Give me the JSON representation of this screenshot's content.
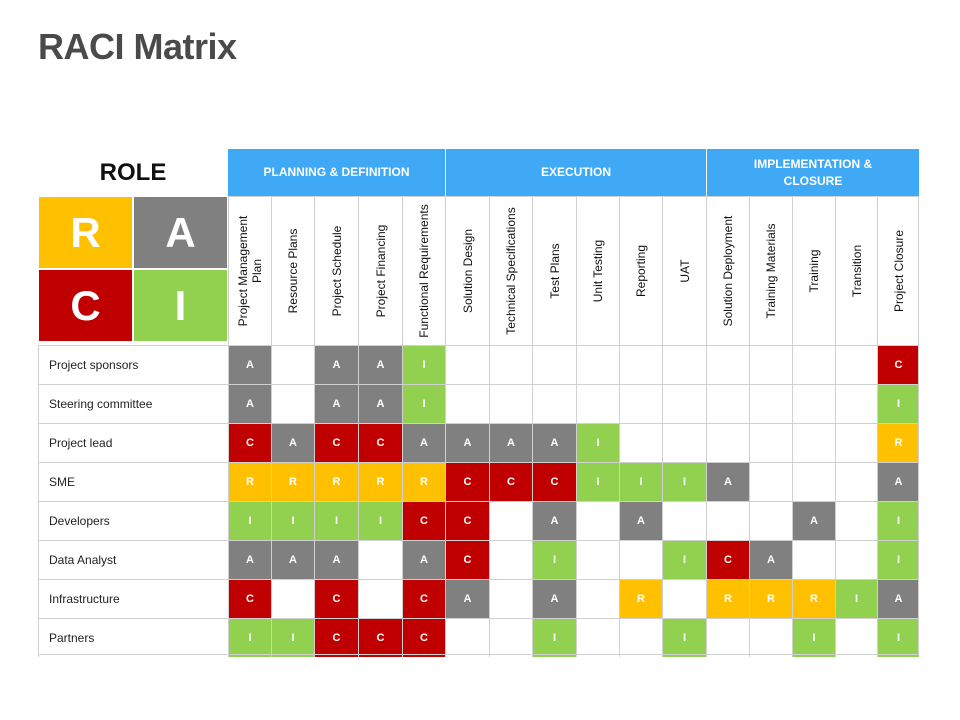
{
  "title": "RACI Matrix",
  "role_label": "ROLE",
  "phases": [
    {
      "label": "PLANNING & DEFINITION",
      "span": 5
    },
    {
      "label": "EXECUTION",
      "span": 6
    },
    {
      "label": "IMPLEMENTATION & CLOSURE",
      "span": 5
    }
  ],
  "legend": {
    "R": {
      "letter": "R",
      "color": "#ffc000"
    },
    "A": {
      "letter": "A",
      "color": "#808080"
    },
    "C": {
      "letter": "C",
      "color": "#c00000"
    },
    "I": {
      "letter": "I",
      "color": "#92d050"
    }
  },
  "columns": [
    "Project Management Plan",
    "Resource Plans",
    "Project Schedule",
    "Project Financing",
    "Functional Requirements",
    "Solution Design",
    "Technical Specifications",
    "Test Plans",
    "Unit Testing",
    "Reporting",
    "UAT",
    "Solution Deployment",
    "Training Materials",
    "Training",
    "Transition",
    "Project Closure"
  ],
  "rows": [
    {
      "role": "Project sponsors",
      "cells": [
        "A",
        "",
        "A",
        "A",
        "I",
        "",
        "",
        "",
        "",
        "",
        "",
        "",
        "",
        "",
        "",
        "C"
      ]
    },
    {
      "role": "Steering committee",
      "cells": [
        "A",
        "",
        "A",
        "A",
        "I",
        "",
        "",
        "",
        "",
        "",
        "",
        "",
        "",
        "",
        "",
        "I"
      ]
    },
    {
      "role": "Project lead",
      "cells": [
        "C",
        "A",
        "C",
        "C",
        "A",
        "A",
        "A",
        "A",
        "I",
        "",
        "",
        "",
        "",
        "",
        "",
        "R"
      ]
    },
    {
      "role": "SME",
      "cells": [
        "R",
        "R",
        "R",
        "R",
        "R",
        "C",
        "C",
        "C",
        "I",
        "I",
        "I",
        "A",
        "",
        "",
        "",
        "A"
      ]
    },
    {
      "role": "Developers",
      "cells": [
        "I",
        "I",
        "I",
        "I",
        "C",
        "C",
        "",
        "A",
        "",
        "A",
        "",
        "",
        "",
        "A",
        "",
        "I"
      ]
    },
    {
      "role": "Data Analyst",
      "cells": [
        "A",
        "A",
        "A",
        "",
        "A",
        "C",
        "",
        "I",
        "",
        "",
        "I",
        "C",
        "A",
        "",
        "",
        "I"
      ]
    },
    {
      "role": "Infrastructure",
      "cells": [
        "C",
        "",
        "C",
        "",
        "C",
        "A",
        "",
        "A",
        "",
        "R",
        "",
        "R",
        "R",
        "R",
        "I",
        "A"
      ]
    },
    {
      "role": "Partners",
      "cells": [
        "I",
        "I",
        "C",
        "C",
        "C",
        "",
        "",
        "I",
        "",
        "",
        "I",
        "",
        "",
        "I",
        "",
        "I"
      ]
    }
  ]
}
